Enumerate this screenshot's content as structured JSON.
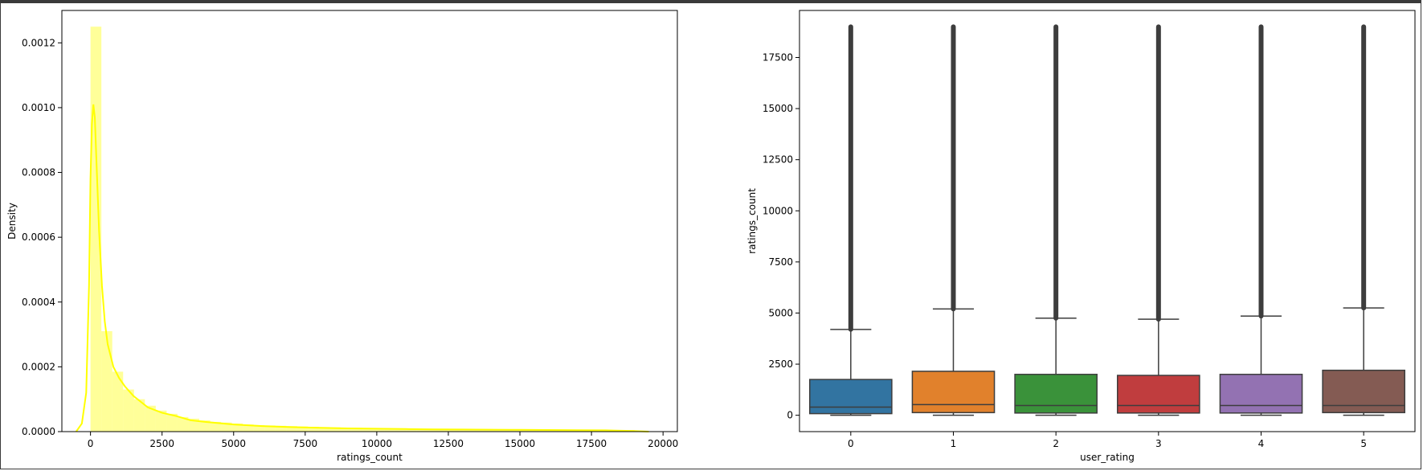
{
  "chart_data": [
    {
      "type": "histogram",
      "xlabel": "ratings_count",
      "ylabel": "Density",
      "xlim": [
        -1000,
        20500
      ],
      "ylim": [
        0,
        0.0013
      ],
      "xticks": [
        0,
        2500,
        5000,
        7500,
        10000,
        12500,
        15000,
        17500,
        20000
      ],
      "xtick_labels": [
        "0",
        "2500",
        "5000",
        "7500",
        "10000",
        "12500",
        "15000",
        "17500",
        "20000"
      ],
      "yticks": [
        0,
        0.0002,
        0.0004,
        0.0006,
        0.0008,
        0.001,
        0.0012
      ],
      "ytick_labels": [
        "0.0000",
        "0.0002",
        "0.0004",
        "0.0006",
        "0.0008",
        "0.0010",
        "0.0012"
      ],
      "color": "#ffff00",
      "bin_width": 380,
      "bins_start": [
        0,
        380,
        760,
        1140,
        1520,
        1900,
        2280,
        2660,
        3040,
        3420,
        3800,
        4180,
        4560,
        4940,
        5320,
        5700,
        6080,
        6460,
        6840,
        7220,
        7600,
        7980,
        8360,
        8740,
        9120,
        9500,
        9880,
        10260,
        10640,
        11020,
        11400,
        11780,
        12160,
        12540,
        12920,
        13300,
        13680,
        14060,
        14440,
        14820,
        15200,
        15580,
        15960,
        16340,
        16720,
        17100,
        17480,
        17860,
        18240,
        18620
      ],
      "bin_density": [
        0.00125,
        0.00031,
        0.000185,
        0.00013,
        0.0001,
        8e-05,
        6.5e-05,
        5.5e-05,
        4.5e-05,
        4e-05,
        3.5e-05,
        3e-05,
        2.8e-05,
        2.5e-05,
        2.2e-05,
        2e-05,
        1.9e-05,
        1.8e-05,
        1.7e-05,
        1.6e-05,
        1.5e-05,
        1.4e-05,
        1.3e-05,
        1.2e-05,
        1.2e-05,
        1.1e-05,
        1.1e-05,
        1e-05,
        1e-05,
        1e-05,
        9e-06,
        9e-06,
        9e-06,
        8e-06,
        8e-06,
        8e-06,
        8e-06,
        7e-06,
        7e-06,
        7e-06,
        7e-06,
        7e-06,
        6e-06,
        6e-06,
        6e-06,
        6e-06,
        6e-06,
        5e-06,
        5e-06,
        5e-06
      ],
      "kde_x": [
        -500,
        -300,
        -150,
        -50,
        0,
        50,
        100,
        150,
        200,
        300,
        400,
        500,
        600,
        800,
        1000,
        1200,
        1500,
        2000,
        2500,
        3000,
        3500,
        4000,
        5000,
        6000,
        7000,
        8000,
        9000,
        10000,
        11000,
        12000,
        13000,
        14000,
        15000,
        16000,
        17000,
        18000,
        19000,
        19500
      ],
      "kde_y": [
        0,
        2.5e-05,
        0.00012,
        0.00045,
        0.00078,
        0.00095,
        0.00101,
        0.00097,
        0.00085,
        0.00062,
        0.00045,
        0.00034,
        0.00027,
        0.0002,
        0.000165,
        0.00014,
        0.00011,
        7.5e-05,
        5.8e-05,
        4.8e-05,
        3.5e-05,
        3e-05,
        2.2e-05,
        1.7e-05,
        1.4e-05,
        1.2e-05,
        1e-05,
        9e-06,
        8e-06,
        7e-06,
        6.5e-06,
        6e-06,
        5.5e-06,
        5e-06,
        4.5e-06,
        4e-06,
        2e-06,
        0
      ]
    },
    {
      "type": "box",
      "xlabel": "user_rating",
      "ylabel": "ratings_count",
      "categories": [
        "0",
        "1",
        "2",
        "3",
        "4",
        "5"
      ],
      "ylim": [
        -800,
        19800
      ],
      "yticks": [
        0,
        2500,
        5000,
        7500,
        10000,
        12500,
        15000,
        17500
      ],
      "ytick_labels": [
        "0",
        "2500",
        "5000",
        "7500",
        "10000",
        "12500",
        "15000",
        "17500"
      ],
      "boxes": [
        {
          "category": "0",
          "q1": 80,
          "median": 400,
          "q3": 1750,
          "whisker_low": 0,
          "whisker_high": 4200,
          "outlier_max": 19000,
          "color": "#3274a1"
        },
        {
          "category": "1",
          "q1": 130,
          "median": 520,
          "q3": 2150,
          "whisker_low": 0,
          "whisker_high": 5200,
          "outlier_max": 19000,
          "color": "#e1812c"
        },
        {
          "category": "2",
          "q1": 110,
          "median": 480,
          "q3": 2000,
          "whisker_low": 0,
          "whisker_high": 4750,
          "outlier_max": 19000,
          "color": "#3a923a"
        },
        {
          "category": "3",
          "q1": 110,
          "median": 480,
          "q3": 1950,
          "whisker_low": 0,
          "whisker_high": 4700,
          "outlier_max": 19000,
          "color": "#c03d3e"
        },
        {
          "category": "4",
          "q1": 110,
          "median": 480,
          "q3": 2000,
          "whisker_low": 0,
          "whisker_high": 4850,
          "outlier_max": 19000,
          "color": "#9372b2"
        },
        {
          "category": "5",
          "q1": 130,
          "median": 480,
          "q3": 2200,
          "whisker_low": 0,
          "whisker_high": 5250,
          "outlier_max": 19000,
          "color": "#845b53"
        }
      ]
    }
  ]
}
